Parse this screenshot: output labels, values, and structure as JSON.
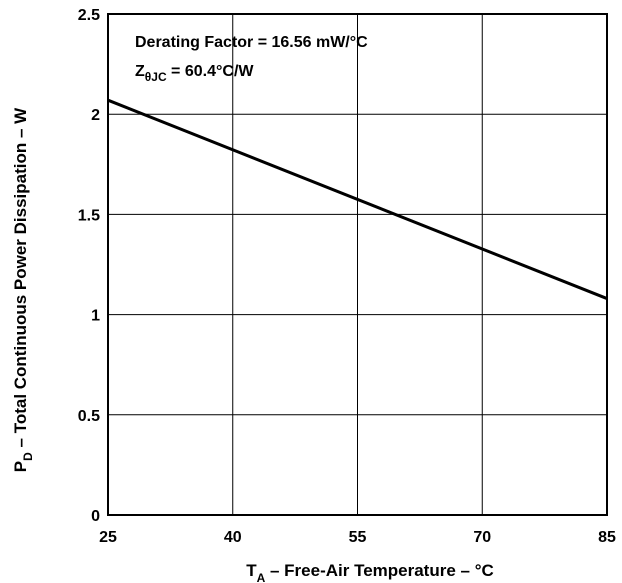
{
  "chart_data": {
    "type": "line",
    "xlabel_main": "T",
    "xlabel_sub": "A",
    "xlabel_rest": " – Free-Air Temperature – °C",
    "ylabel_main": "P",
    "ylabel_sub": "D",
    "ylabel_rest": " – Total Continuous Power Dissipation – W",
    "xlim": [
      25,
      85
    ],
    "ylim": [
      0,
      2.5
    ],
    "x_ticks": [
      25,
      40,
      55,
      70,
      85
    ],
    "x_tick_labels": [
      "25",
      "40",
      "55",
      "70",
      "85"
    ],
    "y_ticks": [
      0,
      0.5,
      1,
      1.5,
      2,
      2.5
    ],
    "y_tick_labels": [
      "0",
      "0.5",
      "1",
      "1.5",
      "2",
      "2.5"
    ],
    "grid": true,
    "series": [
      {
        "x": [
          25,
          85
        ],
        "y": [
          2.07,
          1.08
        ]
      }
    ],
    "annotations": {
      "line1": "Derating Factor = 16.56 mW/°C",
      "line2_main": "Z",
      "line2_sub": "θJC",
      "line2_rest": " = 60.4°C/W"
    }
  }
}
